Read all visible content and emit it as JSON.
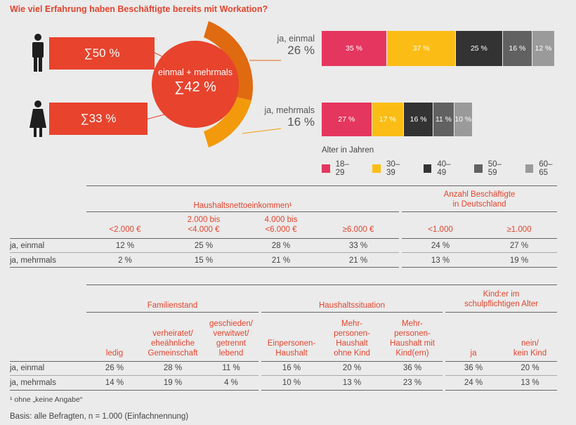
{
  "title": "Wie viel Erfahrung haben Beschäftigte bereits mit Workation?",
  "left": {
    "male_value": "∑50 %",
    "female_value": "∑33 %",
    "circle_line1": "einmal + mehrmals",
    "circle_line2": "∑42 %"
  },
  "rows": [
    {
      "label": "ja, einmal",
      "percent": "26 %"
    },
    {
      "label": "ja, mehrmals",
      "percent": "16 %"
    }
  ],
  "legend_title": "Alter in Jahren",
  "colors": {
    "accent": "#e8432d",
    "c1": "#e5365f",
    "c2": "#fbbd15",
    "c3": "#333333",
    "c4": "#616161",
    "c5": "#9a9a9a",
    "ring_outer": "#e06a10",
    "ring_inner": "#f39a0c"
  },
  "chart_data": {
    "type": "bar",
    "categories": [
      "18–29",
      "30–39",
      "40–49",
      "50–59",
      "60–65"
    ],
    "series": [
      {
        "name": "ja, einmal",
        "values": [
          35,
          37,
          25,
          16,
          12
        ],
        "labels": [
          "35 %",
          "37 %",
          "25 %",
          "16 %",
          "12 %"
        ]
      },
      {
        "name": "ja, mehrmals",
        "values": [
          27,
          17,
          16,
          11,
          10
        ],
        "labels": [
          "27 %",
          "17 %",
          "16 %",
          "11 %",
          "10 %"
        ]
      }
    ],
    "title": "Wie viel Erfahrung haben Beschäftigte bereits mit Workation?",
    "legend": "bottom"
  },
  "table1": {
    "group1": "Haushaltsnettoeinkommen¹",
    "group2_l1": "Anzahl Beschäftigte",
    "group2_l2": "in Deutschland",
    "cols": [
      {
        "l1": "",
        "l2": "<2.000 €"
      },
      {
        "l1": "2.000 bis",
        "l2": "<4.000 €"
      },
      {
        "l1": "4.000 bis",
        "l2": "<6.000 €"
      },
      {
        "l1": "",
        "l2": "≥6.000 €"
      },
      {
        "l1": "",
        "l2": "<1.000"
      },
      {
        "l1": "",
        "l2": "≥1.000"
      }
    ],
    "rows": [
      {
        "label": "ja, einmal",
        "values": [
          "12 %",
          "25 %",
          "28 %",
          "33 %",
          "24 %",
          "27 %"
        ]
      },
      {
        "label": "ja, mehrmals",
        "values": [
          "2 %",
          "15 %",
          "21 %",
          "21 %",
          "13 %",
          "19 %"
        ]
      }
    ]
  },
  "table2": {
    "group1": "Familienstand",
    "group2": "Haushaltssituation",
    "group3_l1": "Kind:er im",
    "group3_l2": "schulpflichtigen Alter",
    "cols": [
      {
        "lines": [
          "ledig"
        ]
      },
      {
        "lines": [
          "verheiratet/",
          "eheähnliche",
          "Gemeinschaft"
        ]
      },
      {
        "lines": [
          "geschieden/",
          "verwitwet/",
          "getrennt",
          "lebend"
        ]
      },
      {
        "lines": [
          "Einpersonen-",
          "Haushalt"
        ]
      },
      {
        "lines": [
          "Mehr-",
          "personen-",
          "Haushalt",
          "ohne Kind"
        ]
      },
      {
        "lines": [
          "Mehr-",
          "personen-",
          "Haushalt mit",
          "Kind(ern)"
        ]
      },
      {
        "lines": [
          "ja"
        ]
      },
      {
        "lines": [
          "nein/",
          "kein Kind"
        ]
      }
    ],
    "rows": [
      {
        "label": "ja, einmal",
        "values": [
          "26 %",
          "28 %",
          "11 %",
          "16 %",
          "20 %",
          "36 %",
          "36 %",
          "20 %"
        ]
      },
      {
        "label": "ja, mehrmals",
        "values": [
          "14 %",
          "19 %",
          "4 %",
          "10 %",
          "13 %",
          "23 %",
          "24 %",
          "13 %"
        ]
      }
    ]
  },
  "footnote": "¹   ohne „keine Angabe“",
  "basis": "Basis: alle Befragten, n = 1.000 (Einfachnennung)"
}
